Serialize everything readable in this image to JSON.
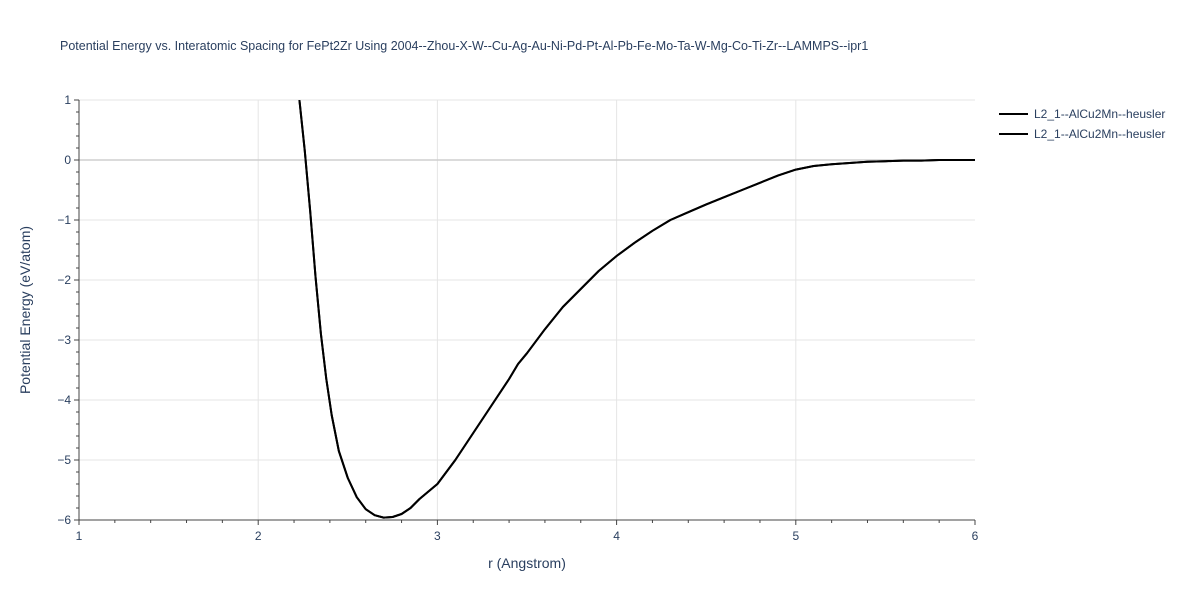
{
  "chart_data": {
    "type": "line",
    "title": "Potential Energy vs. Interatomic Spacing for FePt2Zr Using 2004--Zhou-X-W--Cu-Ag-Au-Ni-Pd-Pt-Al-Pb-Fe-Mo-Ta-W-Mg-Co-Ti-Zr--LAMMPS--ipr1",
    "xlabel": "r (Angstrom)",
    "ylabel": "Potential Energy (eV/atom)",
    "xlim": [
      1,
      6
    ],
    "ylim": [
      -6,
      1
    ],
    "x_ticks": [
      1,
      2,
      3,
      4,
      5,
      6
    ],
    "y_ticks": [
      1,
      0,
      -1,
      -2,
      -3,
      -4,
      -5,
      -6
    ],
    "x_tick_labels": [
      "1",
      "2",
      "3",
      "4",
      "5",
      "6"
    ],
    "y_tick_labels": [
      "1",
      "0",
      "−1",
      "−2",
      "−3",
      "−4",
      "−5",
      "−6"
    ],
    "grid": true,
    "legend_position": "top-right",
    "series": [
      {
        "name": "L2_1--AlCu2Mn--heusler",
        "color": "#000000",
        "x": [
          2.23,
          2.26,
          2.29,
          2.32,
          2.35,
          2.38,
          2.41,
          2.45,
          2.5,
          2.55,
          2.6,
          2.65,
          2.7,
          2.75,
          2.8,
          2.85,
          2.9,
          3.0,
          3.1,
          3.2,
          3.3,
          3.4,
          3.45,
          3.5,
          3.6,
          3.7,
          3.8,
          3.9,
          4.0,
          4.1,
          4.2,
          4.3,
          4.4,
          4.5,
          4.6,
          4.7,
          4.8,
          4.9,
          5.0,
          5.1,
          5.2,
          5.3,
          5.4,
          5.5,
          5.6,
          5.7,
          5.8,
          5.9,
          6.0
        ],
        "y": [
          1.0,
          0.15,
          -0.85,
          -1.95,
          -2.9,
          -3.65,
          -4.25,
          -4.85,
          -5.3,
          -5.62,
          -5.82,
          -5.92,
          -5.96,
          -5.95,
          -5.9,
          -5.8,
          -5.65,
          -5.4,
          -5.0,
          -4.55,
          -4.1,
          -3.65,
          -3.4,
          -3.22,
          -2.82,
          -2.45,
          -2.15,
          -1.85,
          -1.6,
          -1.38,
          -1.18,
          -1.0,
          -0.87,
          -0.74,
          -0.62,
          -0.5,
          -0.38,
          -0.26,
          -0.16,
          -0.1,
          -0.07,
          -0.05,
          -0.03,
          -0.02,
          -0.01,
          -0.01,
          0.0,
          0.0,
          0.0
        ]
      },
      {
        "name": "L2_1--AlCu2Mn--heusler",
        "color": "#000000",
        "x": [
          2.23,
          2.26,
          2.29,
          2.32,
          2.35,
          2.38,
          2.41,
          2.45,
          2.5,
          2.55,
          2.6,
          2.65,
          2.7,
          2.75,
          2.8,
          2.85,
          2.9,
          3.0,
          3.1,
          3.2,
          3.3,
          3.4,
          3.45,
          3.5,
          3.6,
          3.7,
          3.8,
          3.9,
          4.0,
          4.1,
          4.2,
          4.3,
          4.4,
          4.5,
          4.6,
          4.7,
          4.8,
          4.9,
          5.0,
          5.1,
          5.2,
          5.3,
          5.4,
          5.5,
          5.6,
          5.7,
          5.8,
          5.9,
          6.0
        ],
        "y": [
          1.0,
          0.15,
          -0.85,
          -1.95,
          -2.9,
          -3.65,
          -4.25,
          -4.85,
          -5.3,
          -5.62,
          -5.82,
          -5.92,
          -5.96,
          -5.95,
          -5.9,
          -5.8,
          -5.65,
          -5.4,
          -5.0,
          -4.55,
          -4.1,
          -3.65,
          -3.4,
          -3.22,
          -2.82,
          -2.45,
          -2.15,
          -1.85,
          -1.6,
          -1.38,
          -1.18,
          -1.0,
          -0.87,
          -0.74,
          -0.62,
          -0.5,
          -0.38,
          -0.26,
          -0.16,
          -0.1,
          -0.07,
          -0.05,
          -0.03,
          -0.02,
          -0.01,
          -0.01,
          0.0,
          0.0,
          0.0
        ]
      }
    ]
  }
}
